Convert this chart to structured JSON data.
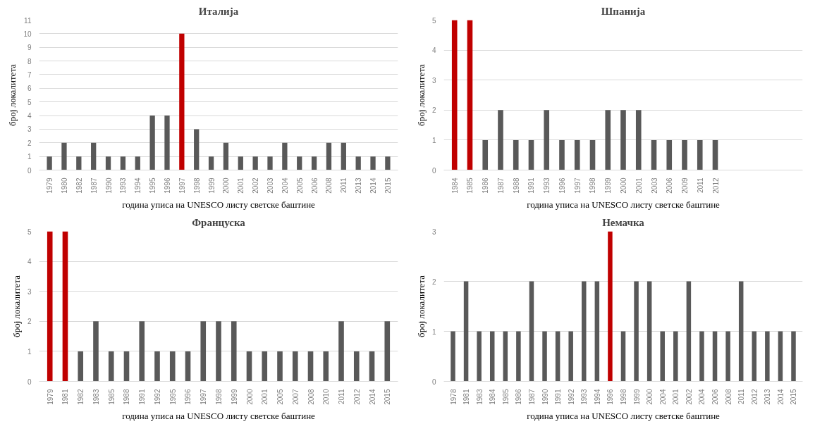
{
  "chart_data": [
    {
      "type": "bar",
      "title": "Италија",
      "xlabel": "година уписа на UNESCO листу светске баштине",
      "ylabel": "број локалитета",
      "categories": [
        "1979",
        "1980",
        "1982",
        "1987",
        "1990",
        "1993",
        "1994",
        "1995",
        "1996",
        "1997",
        "1998",
        "1999",
        "2000",
        "2001",
        "2002",
        "2003",
        "2004",
        "2005",
        "2006",
        "2008",
        "2011",
        "2013",
        "2014",
        "2015"
      ],
      "values": [
        1,
        2,
        1,
        2,
        1,
        1,
        1,
        4,
        4,
        10,
        3,
        1,
        2,
        1,
        1,
        1,
        2,
        1,
        1,
        2,
        2,
        1,
        1,
        1
      ],
      "colors": [
        "#595959",
        "#595959",
        "#595959",
        "#595959",
        "#595959",
        "#595959",
        "#595959",
        "#595959",
        "#595959",
        "#c00000",
        "#595959",
        "#595959",
        "#595959",
        "#595959",
        "#595959",
        "#595959",
        "#595959",
        "#595959",
        "#595959",
        "#595959",
        "#595959",
        "#595959",
        "#595959",
        "#595959"
      ],
      "ylim": [
        0,
        11
      ],
      "yticks": [
        0,
        1,
        2,
        3,
        4,
        5,
        6,
        7,
        8,
        9,
        10,
        11
      ],
      "grid": "y"
    },
    {
      "type": "bar",
      "title": "Шпанија",
      "xlabel": "година уписа на UNESCO листу светске баштине",
      "ylabel": "број локалитета",
      "categories": [
        "1984",
        "1985",
        "1986",
        "1987",
        "1988",
        "1991",
        "1993",
        "1996",
        "1997",
        "1998",
        "1999",
        "2000",
        "2001",
        "2003",
        "2006",
        "2009",
        "2011",
        "2012",
        null,
        null,
        null,
        null,
        null
      ],
      "values": [
        5,
        5,
        1,
        2,
        1,
        1,
        2,
        1,
        1,
        1,
        2,
        2,
        2,
        1,
        1,
        1,
        1,
        1,
        null,
        null,
        null,
        null,
        null
      ],
      "colors": [
        "#c00000",
        "#c00000",
        "#595959",
        "#595959",
        "#595959",
        "#595959",
        "#595959",
        "#595959",
        "#595959",
        "#595959",
        "#595959",
        "#595959",
        "#595959",
        "#595959",
        "#595959",
        "#595959",
        "#595959",
        "#595959",
        "#595959",
        "#595959",
        "#595959",
        "#595959",
        "#595959"
      ],
      "ylim": [
        0,
        5
      ],
      "yticks": [
        0,
        1,
        2,
        3,
        4,
        5
      ],
      "grid": "y"
    },
    {
      "type": "bar",
      "title": "Француска",
      "xlabel": "година уписа на UNESCO листу светске баштине",
      "ylabel": "број локалитета",
      "categories": [
        "1979",
        "1981",
        "1982",
        "1983",
        "1985",
        "1988",
        "1991",
        "1992",
        "1995",
        "1996",
        "1997",
        "1998",
        "1999",
        "2000",
        "2001",
        "2005",
        "2007",
        "2008",
        "2010",
        "2011",
        "2012",
        "2014",
        "2015"
      ],
      "values": [
        5,
        5,
        1,
        2,
        1,
        1,
        2,
        1,
        1,
        1,
        2,
        2,
        2,
        1,
        1,
        1,
        1,
        1,
        1,
        2,
        1,
        1,
        2
      ],
      "colors": [
        "#c00000",
        "#c00000",
        "#595959",
        "#595959",
        "#595959",
        "#595959",
        "#595959",
        "#595959",
        "#595959",
        "#595959",
        "#595959",
        "#595959",
        "#595959",
        "#595959",
        "#595959",
        "#595959",
        "#595959",
        "#595959",
        "#595959",
        "#595959",
        "#595959",
        "#595959",
        "#595959"
      ],
      "ylim": [
        0,
        5
      ],
      "yticks": [
        0,
        1,
        2,
        3,
        4,
        5
      ],
      "grid": "y"
    },
    {
      "type": "bar",
      "title": "Немачка",
      "xlabel": "година уписа на UNESCO листу светске баштине",
      "ylabel": "број локалитета",
      "categories": [
        "1978",
        "1981",
        "1983",
        "1984",
        "1985",
        "1986",
        "1987",
        "1990",
        "1991",
        "1992",
        "1993",
        "1994",
        "1996",
        "1998",
        "1999",
        "2000",
        "2004",
        "2001",
        "2002",
        "2004",
        "2006",
        "2008",
        "2011",
        "2012",
        "2013",
        "2014",
        "2015"
      ],
      "values": [
        1,
        2,
        1,
        1,
        1,
        1,
        2,
        1,
        1,
        1,
        2,
        2,
        3,
        1,
        2,
        2,
        1,
        1,
        2,
        1,
        1,
        1,
        2,
        1,
        1,
        1,
        1
      ],
      "colors": [
        "#595959",
        "#595959",
        "#595959",
        "#595959",
        "#595959",
        "#595959",
        "#595959",
        "#595959",
        "#595959",
        "#595959",
        "#595959",
        "#595959",
        "#c00000",
        "#595959",
        "#595959",
        "#595959",
        "#595959",
        "#595959",
        "#595959",
        "#595959",
        "#595959",
        "#595959",
        "#595959",
        "#595959",
        "#595959",
        "#595959",
        "#595959"
      ],
      "ylim": [
        0,
        3
      ],
      "yticks": [
        0,
        1,
        2,
        3
      ],
      "grid": "y"
    }
  ]
}
